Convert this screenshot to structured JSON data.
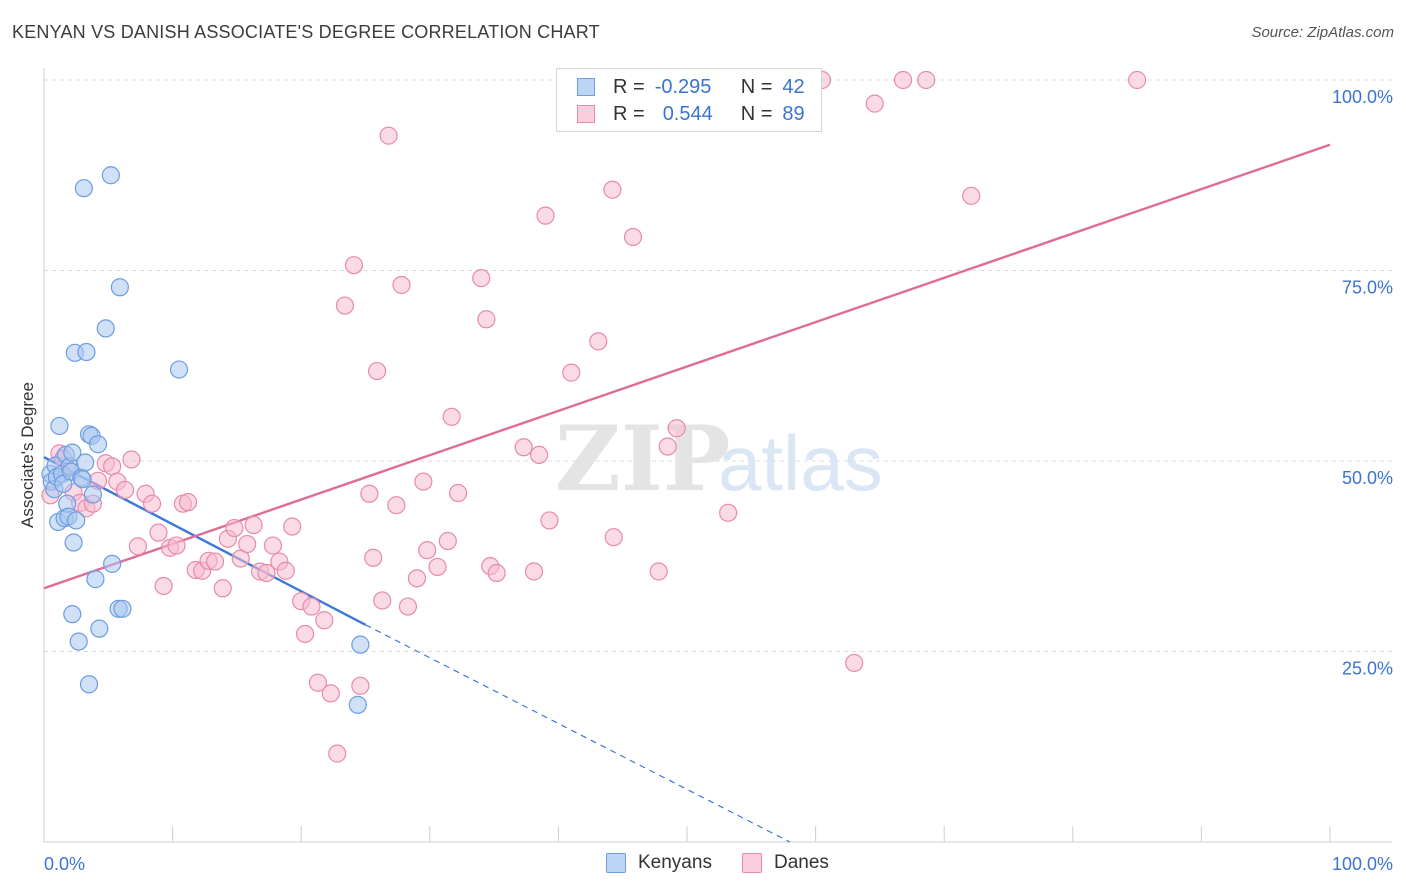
{
  "title": "KENYAN VS DANISH ASSOCIATE'S DEGREE CORRELATION CHART",
  "source": "Source: ZipAtlas.com",
  "watermark": {
    "zip": "ZIP",
    "atlas": "atlas"
  },
  "legend": {
    "rows": [
      {
        "r_label": "R =",
        "r_value": "-0.295",
        "n_label": "N =",
        "n_value": "42"
      },
      {
        "r_label": "R =",
        "r_value": "0.544",
        "n_label": "N =",
        "n_value": "89"
      }
    ]
  },
  "bottom_legend": {
    "kenyans": "Kenyans",
    "danes": "Danes"
  },
  "colors": {
    "kenyan_fill": "#a9c6f0",
    "kenyan_stroke": "#6d9de0",
    "kenyan_line": "#3b78d8",
    "dane_fill": "#f6bcd0",
    "dane_stroke": "#e88aab",
    "dane_line": "#e06b98",
    "tick_text": "#3a74d0",
    "grid": "#dcdcdc"
  },
  "chart_data": {
    "type": "scatter",
    "ylabel": "Associate's Degree",
    "xlabel": "",
    "xlim": [
      0,
      100
    ],
    "ylim": [
      0,
      100
    ],
    "x_tick_labels": {
      "left": "0.0%",
      "right": "100.0%"
    },
    "y_ticks": [
      {
        "value": 25,
        "label": "25.0%"
      },
      {
        "value": 50,
        "label": "50.0%"
      },
      {
        "value": 75,
        "label": "75.0%"
      },
      {
        "value": 100,
        "label": "100.0%"
      }
    ],
    "series": [
      {
        "name": "Kenyans",
        "points": [
          [
            0.5,
            48.3
          ],
          [
            0.6,
            47.3
          ],
          [
            0.8,
            46.3
          ],
          [
            0.9,
            49.4
          ],
          [
            1.0,
            47.9
          ],
          [
            1.1,
            42.0
          ],
          [
            1.2,
            54.6
          ],
          [
            1.4,
            48.3
          ],
          [
            1.5,
            47.0
          ],
          [
            1.6,
            42.5
          ],
          [
            1.7,
            50.8
          ],
          [
            1.8,
            44.4
          ],
          [
            1.9,
            42.7
          ],
          [
            2.0,
            49.3
          ],
          [
            2.1,
            48.6
          ],
          [
            2.2,
            51.1
          ],
          [
            2.2,
            29.9
          ],
          [
            2.3,
            39.3
          ],
          [
            2.4,
            64.2
          ],
          [
            2.5,
            42.2
          ],
          [
            2.7,
            26.3
          ],
          [
            2.9,
            47.8
          ],
          [
            3.0,
            47.6
          ],
          [
            3.1,
            85.8
          ],
          [
            3.2,
            49.8
          ],
          [
            3.3,
            64.3
          ],
          [
            3.5,
            53.5
          ],
          [
            3.5,
            20.7
          ],
          [
            3.7,
            53.3
          ],
          [
            3.8,
            45.6
          ],
          [
            4.0,
            34.5
          ],
          [
            4.2,
            52.2
          ],
          [
            4.3,
            28.0
          ],
          [
            4.8,
            67.4
          ],
          [
            5.2,
            87.5
          ],
          [
            5.3,
            36.5
          ],
          [
            5.8,
            30.6
          ],
          [
            5.9,
            72.8
          ],
          [
            6.1,
            30.6
          ],
          [
            10.5,
            62.0
          ],
          [
            24.6,
            25.9
          ],
          [
            24.4,
            18.0
          ]
        ]
      },
      {
        "name": "Danes",
        "points": [
          [
            0.5,
            45.5
          ],
          [
            1.2,
            51.0
          ],
          [
            1.5,
            50.3
          ],
          [
            1.8,
            49.0
          ],
          [
            2.3,
            45.9
          ],
          [
            2.8,
            44.5
          ],
          [
            3.3,
            43.8
          ],
          [
            3.8,
            44.4
          ],
          [
            4.2,
            47.4
          ],
          [
            4.8,
            49.7
          ],
          [
            5.3,
            49.3
          ],
          [
            5.7,
            47.3
          ],
          [
            6.3,
            46.2
          ],
          [
            6.8,
            50.2
          ],
          [
            7.3,
            38.8
          ],
          [
            7.9,
            45.7
          ],
          [
            8.4,
            44.4
          ],
          [
            8.9,
            40.6
          ],
          [
            9.3,
            33.6
          ],
          [
            9.8,
            38.6
          ],
          [
            10.3,
            38.9
          ],
          [
            10.8,
            44.4
          ],
          [
            11.2,
            44.6
          ],
          [
            11.8,
            35.7
          ],
          [
            12.3,
            35.6
          ],
          [
            12.8,
            36.9
          ],
          [
            13.3,
            36.8
          ],
          [
            13.9,
            33.3
          ],
          [
            14.3,
            39.8
          ],
          [
            14.8,
            41.2
          ],
          [
            15.3,
            37.2
          ],
          [
            15.8,
            39.1
          ],
          [
            16.3,
            41.6
          ],
          [
            16.8,
            35.5
          ],
          [
            17.3,
            35.3
          ],
          [
            17.8,
            38.9
          ],
          [
            18.3,
            36.8
          ],
          [
            18.8,
            35.6
          ],
          [
            19.3,
            41.4
          ],
          [
            20.0,
            31.6
          ],
          [
            20.3,
            27.3
          ],
          [
            20.8,
            30.9
          ],
          [
            21.3,
            20.9
          ],
          [
            21.8,
            29.1
          ],
          [
            22.3,
            19.5
          ],
          [
            22.8,
            11.6
          ],
          [
            23.4,
            70.4
          ],
          [
            24.1,
            75.7
          ],
          [
            24.6,
            20.5
          ],
          [
            25.3,
            45.7
          ],
          [
            25.6,
            37.3
          ],
          [
            25.9,
            61.8
          ],
          [
            26.3,
            31.7
          ],
          [
            26.8,
            92.7
          ],
          [
            27.4,
            44.2
          ],
          [
            27.8,
            73.1
          ],
          [
            28.3,
            30.9
          ],
          [
            29.0,
            34.6
          ],
          [
            29.5,
            47.3
          ],
          [
            29.8,
            38.3
          ],
          [
            30.6,
            36.1
          ],
          [
            31.4,
            39.5
          ],
          [
            31.7,
            55.8
          ],
          [
            32.2,
            45.8
          ],
          [
            34.0,
            74.0
          ],
          [
            34.4,
            68.6
          ],
          [
            34.7,
            36.2
          ],
          [
            35.2,
            35.3
          ],
          [
            37.3,
            51.8
          ],
          [
            38.1,
            35.5
          ],
          [
            38.5,
            50.8
          ],
          [
            39.0,
            82.2
          ],
          [
            39.3,
            42.2
          ],
          [
            41.0,
            61.6
          ],
          [
            43.1,
            65.7
          ],
          [
            44.2,
            85.6
          ],
          [
            44.3,
            40.0
          ],
          [
            45.8,
            79.4
          ],
          [
            47.8,
            35.5
          ],
          [
            48.5,
            51.9
          ],
          [
            49.2,
            54.3
          ],
          [
            53.2,
            43.2
          ],
          [
            60.5,
            100.0
          ],
          [
            63.0,
            23.5
          ],
          [
            64.6,
            96.9
          ],
          [
            66.8,
            100.0
          ],
          [
            68.6,
            100.0
          ],
          [
            72.1,
            84.8
          ],
          [
            85.0,
            100.0
          ]
        ]
      }
    ],
    "trendlines": [
      {
        "series": "Kenyans",
        "x": [
          0,
          25
        ],
        "y": [
          50.5,
          28.5
        ],
        "dashed_extension_to": [
          58,
          0
        ]
      },
      {
        "series": "Danes",
        "x": [
          0,
          100
        ],
        "y": [
          33.3,
          91.5
        ]
      }
    ]
  }
}
